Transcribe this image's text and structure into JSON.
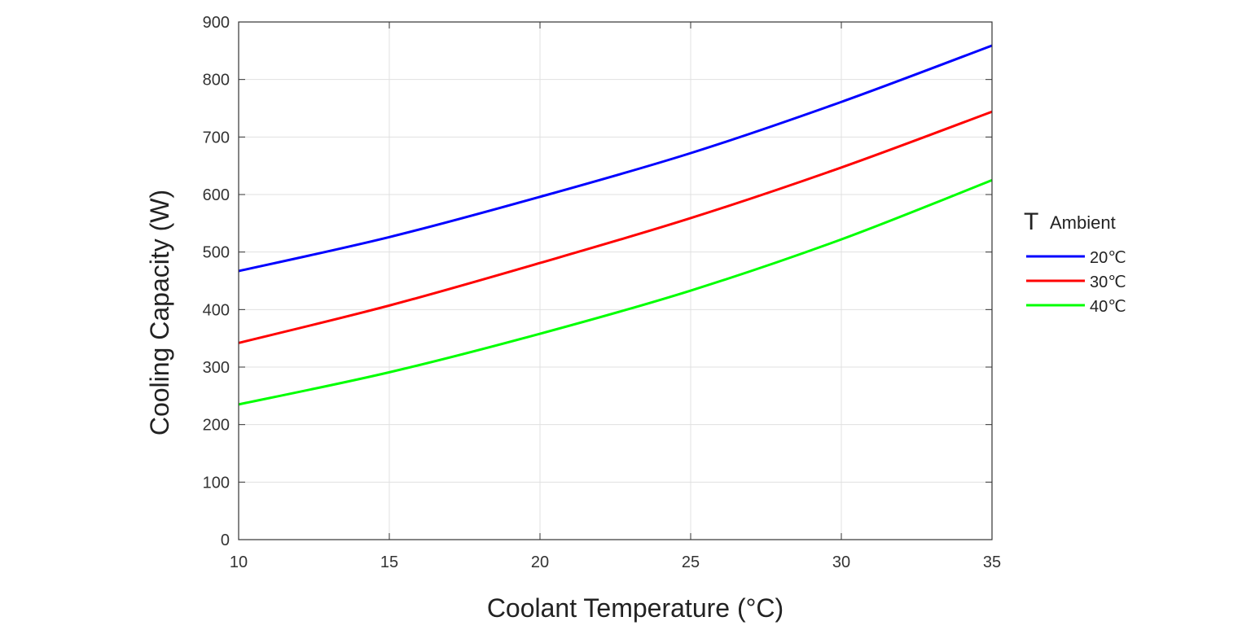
{
  "chart_data": {
    "type": "line",
    "title": "",
    "xlabel": "Coolant Temperature (°C)",
    "ylabel": "Cooling Capacity (W)",
    "xlim": [
      10,
      35
    ],
    "ylim": [
      0,
      900
    ],
    "xticks": [
      10,
      15,
      20,
      25,
      30,
      35
    ],
    "yticks": [
      0,
      100,
      200,
      300,
      400,
      500,
      600,
      700,
      800,
      900
    ],
    "grid": true,
    "legend": {
      "title_main": "T",
      "title_sub": "Ambient",
      "placement": "right"
    },
    "x": [
      10,
      15,
      20,
      25,
      30,
      35
    ],
    "series": [
      {
        "name": "20℃",
        "color": "#0000ff",
        "values": [
          467,
          526,
          596,
          672,
          761,
          859
        ]
      },
      {
        "name": "30℃",
        "color": "#ff0000",
        "values": [
          342,
          407,
          481,
          559,
          647,
          744
        ]
      },
      {
        "name": "40℃",
        "color": "#00ff00",
        "values": [
          235,
          291,
          358,
          433,
          522,
          625
        ]
      }
    ]
  }
}
